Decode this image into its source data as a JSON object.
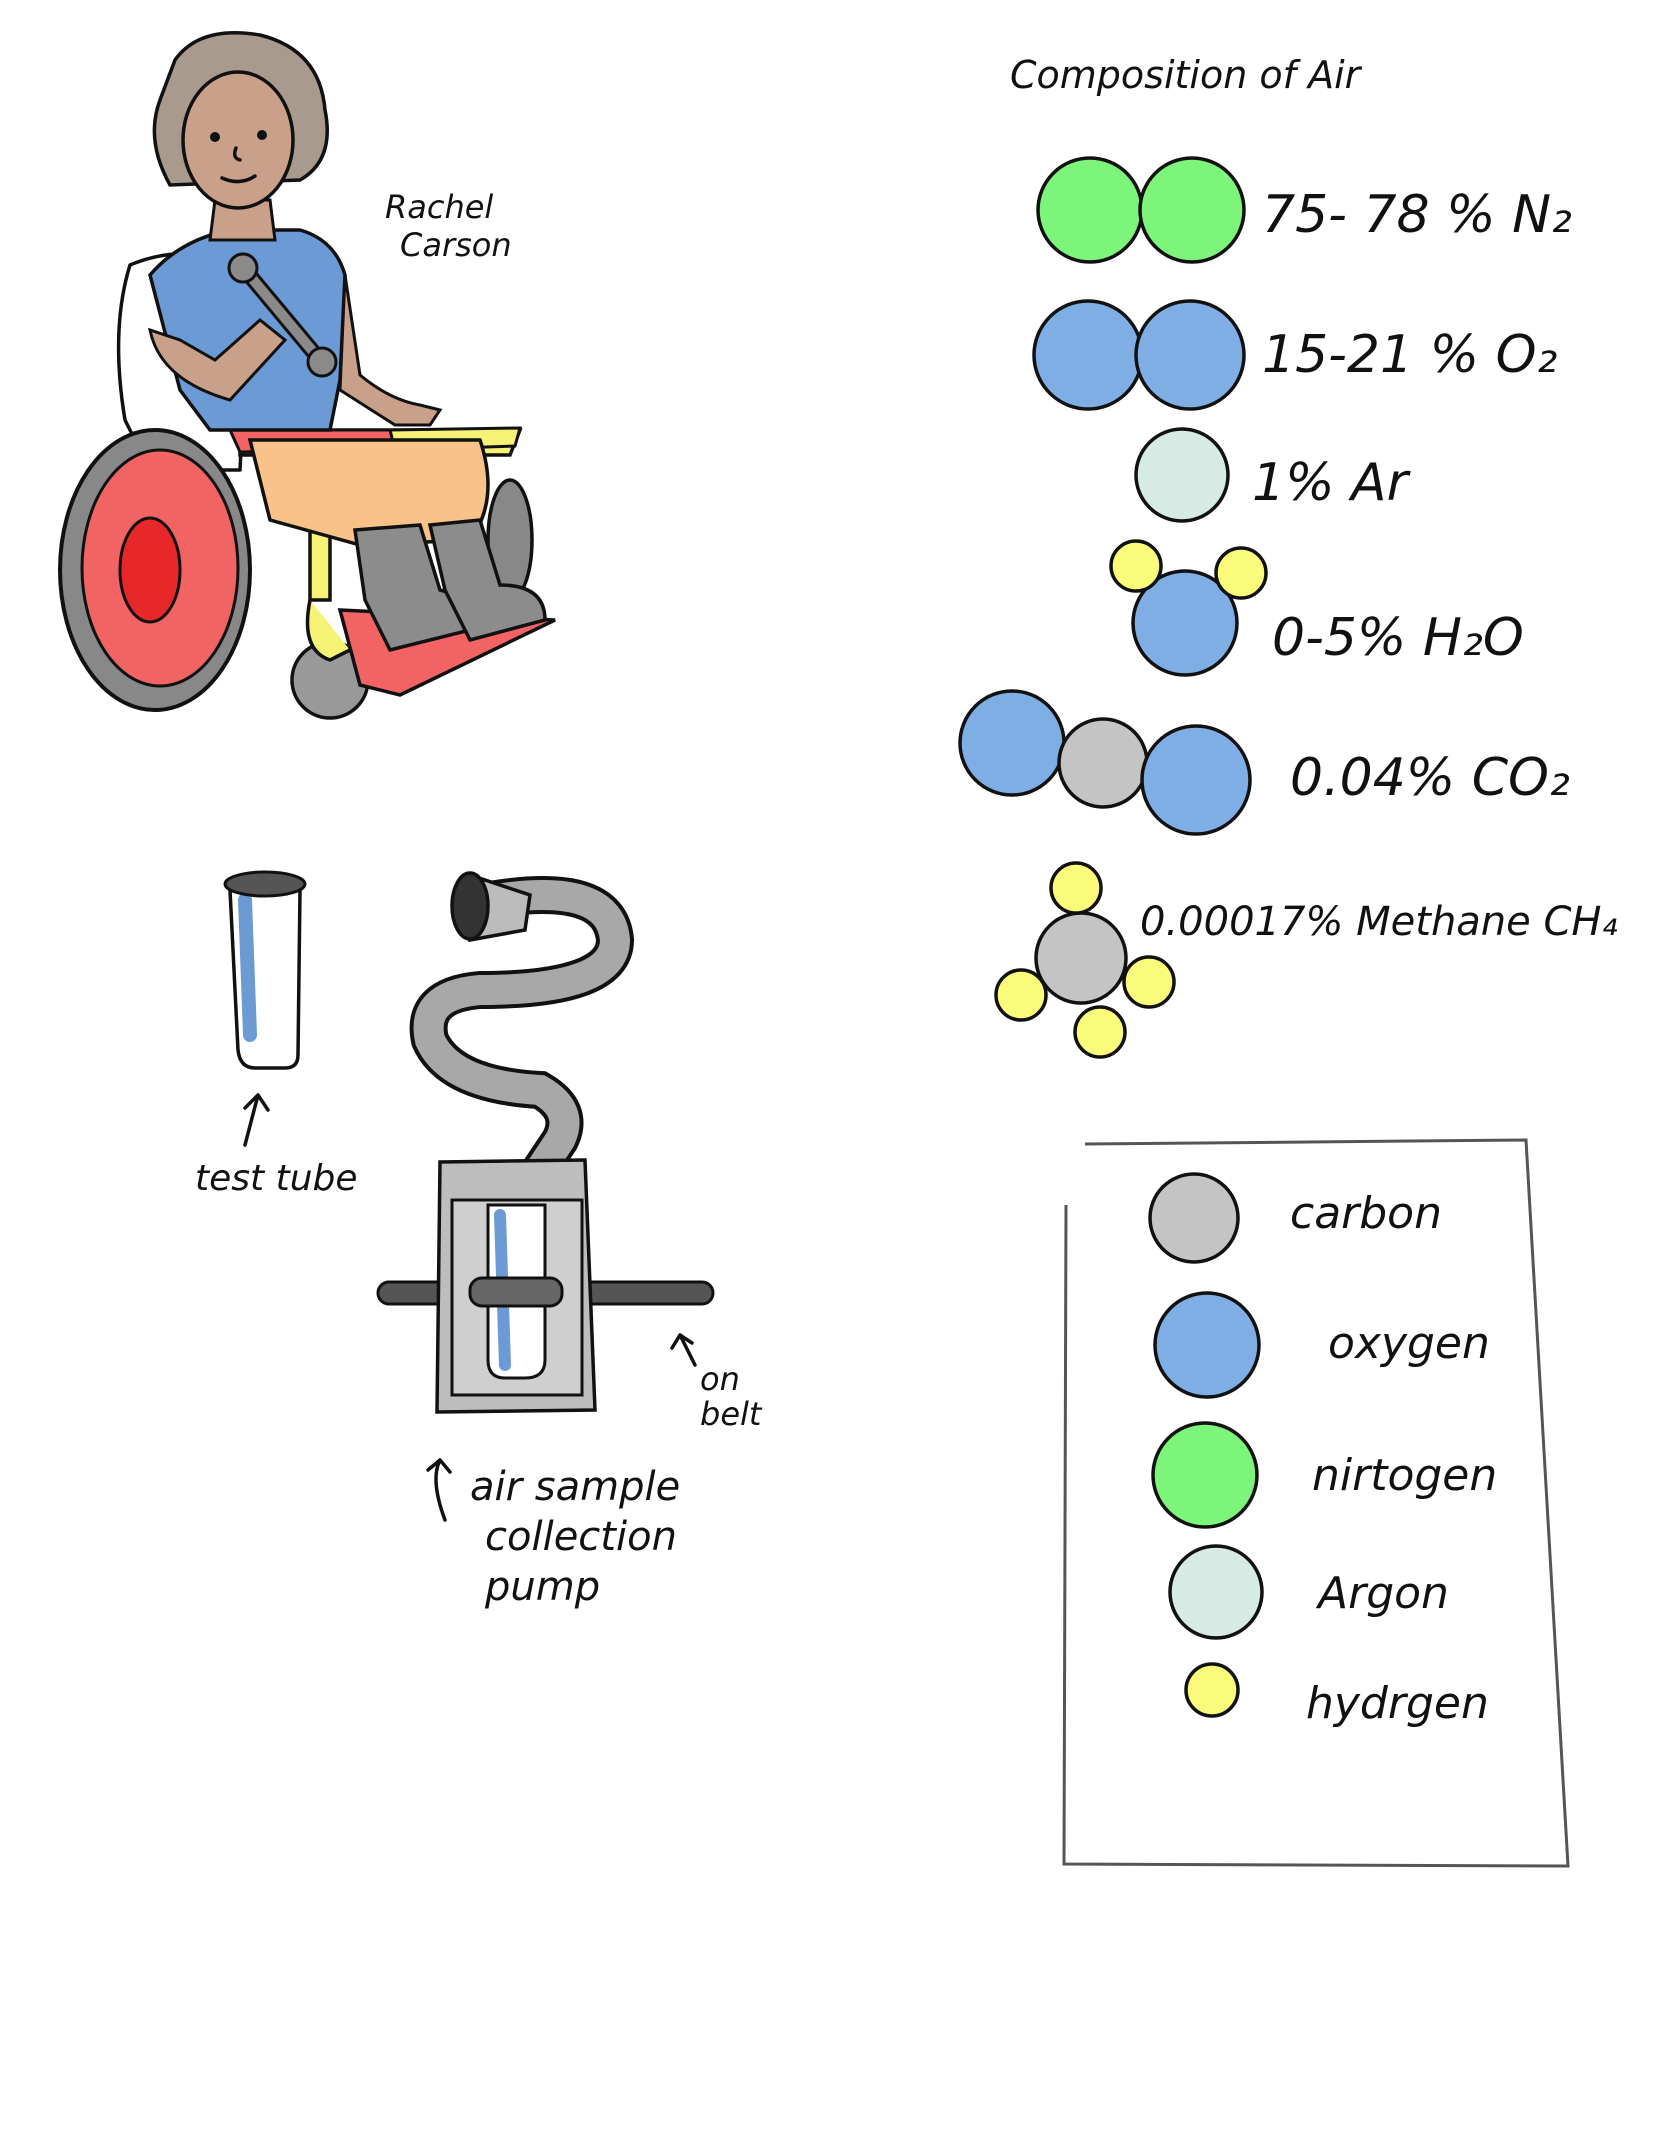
{
  "colors": {
    "carbon": "#c4c4c4",
    "oxygen": "#7eaee3",
    "nitrogen": "#7cf57a",
    "argon": "#d6ebe4",
    "hydrogen": "#fbfb7b",
    "wheel_red": "#f26363",
    "frame_yellow": "#f6f276",
    "shirt_blue": "#6b9ad4",
    "ink": "#111111"
  },
  "person": {
    "name_line1": "Rachel",
    "name_line2": "Carson"
  },
  "labels": {
    "test_tube": "test tube",
    "on_belt_line1": "on",
    "on_belt_line2": "belt",
    "pump_line1": "air sample",
    "pump_line2": "collection",
    "pump_line3": "pump"
  },
  "composition": {
    "title": "Composition of Air",
    "rows": [
      {
        "text": "75- 78 % N₂",
        "molecule": "nitrogen"
      },
      {
        "text": "15-21 % O₂",
        "molecule": "oxygen"
      },
      {
        "text": "1% Ar",
        "molecule": "argon"
      },
      {
        "text": "0-5% H₂O",
        "molecule": "water"
      },
      {
        "text": "0.04% CO₂",
        "molecule": "carbon-dioxide"
      },
      {
        "text": "0.00017% Methane CH₄",
        "molecule": "methane"
      }
    ]
  },
  "legend": {
    "items": [
      {
        "label": "carbon",
        "atom": "carbon"
      },
      {
        "label": "oxygen",
        "atom": "oxygen"
      },
      {
        "label": "nirtogen",
        "atom": "nitrogen"
      },
      {
        "label": "Argon",
        "atom": "argon"
      },
      {
        "label": "hydrgen",
        "atom": "hydrogen"
      }
    ]
  }
}
